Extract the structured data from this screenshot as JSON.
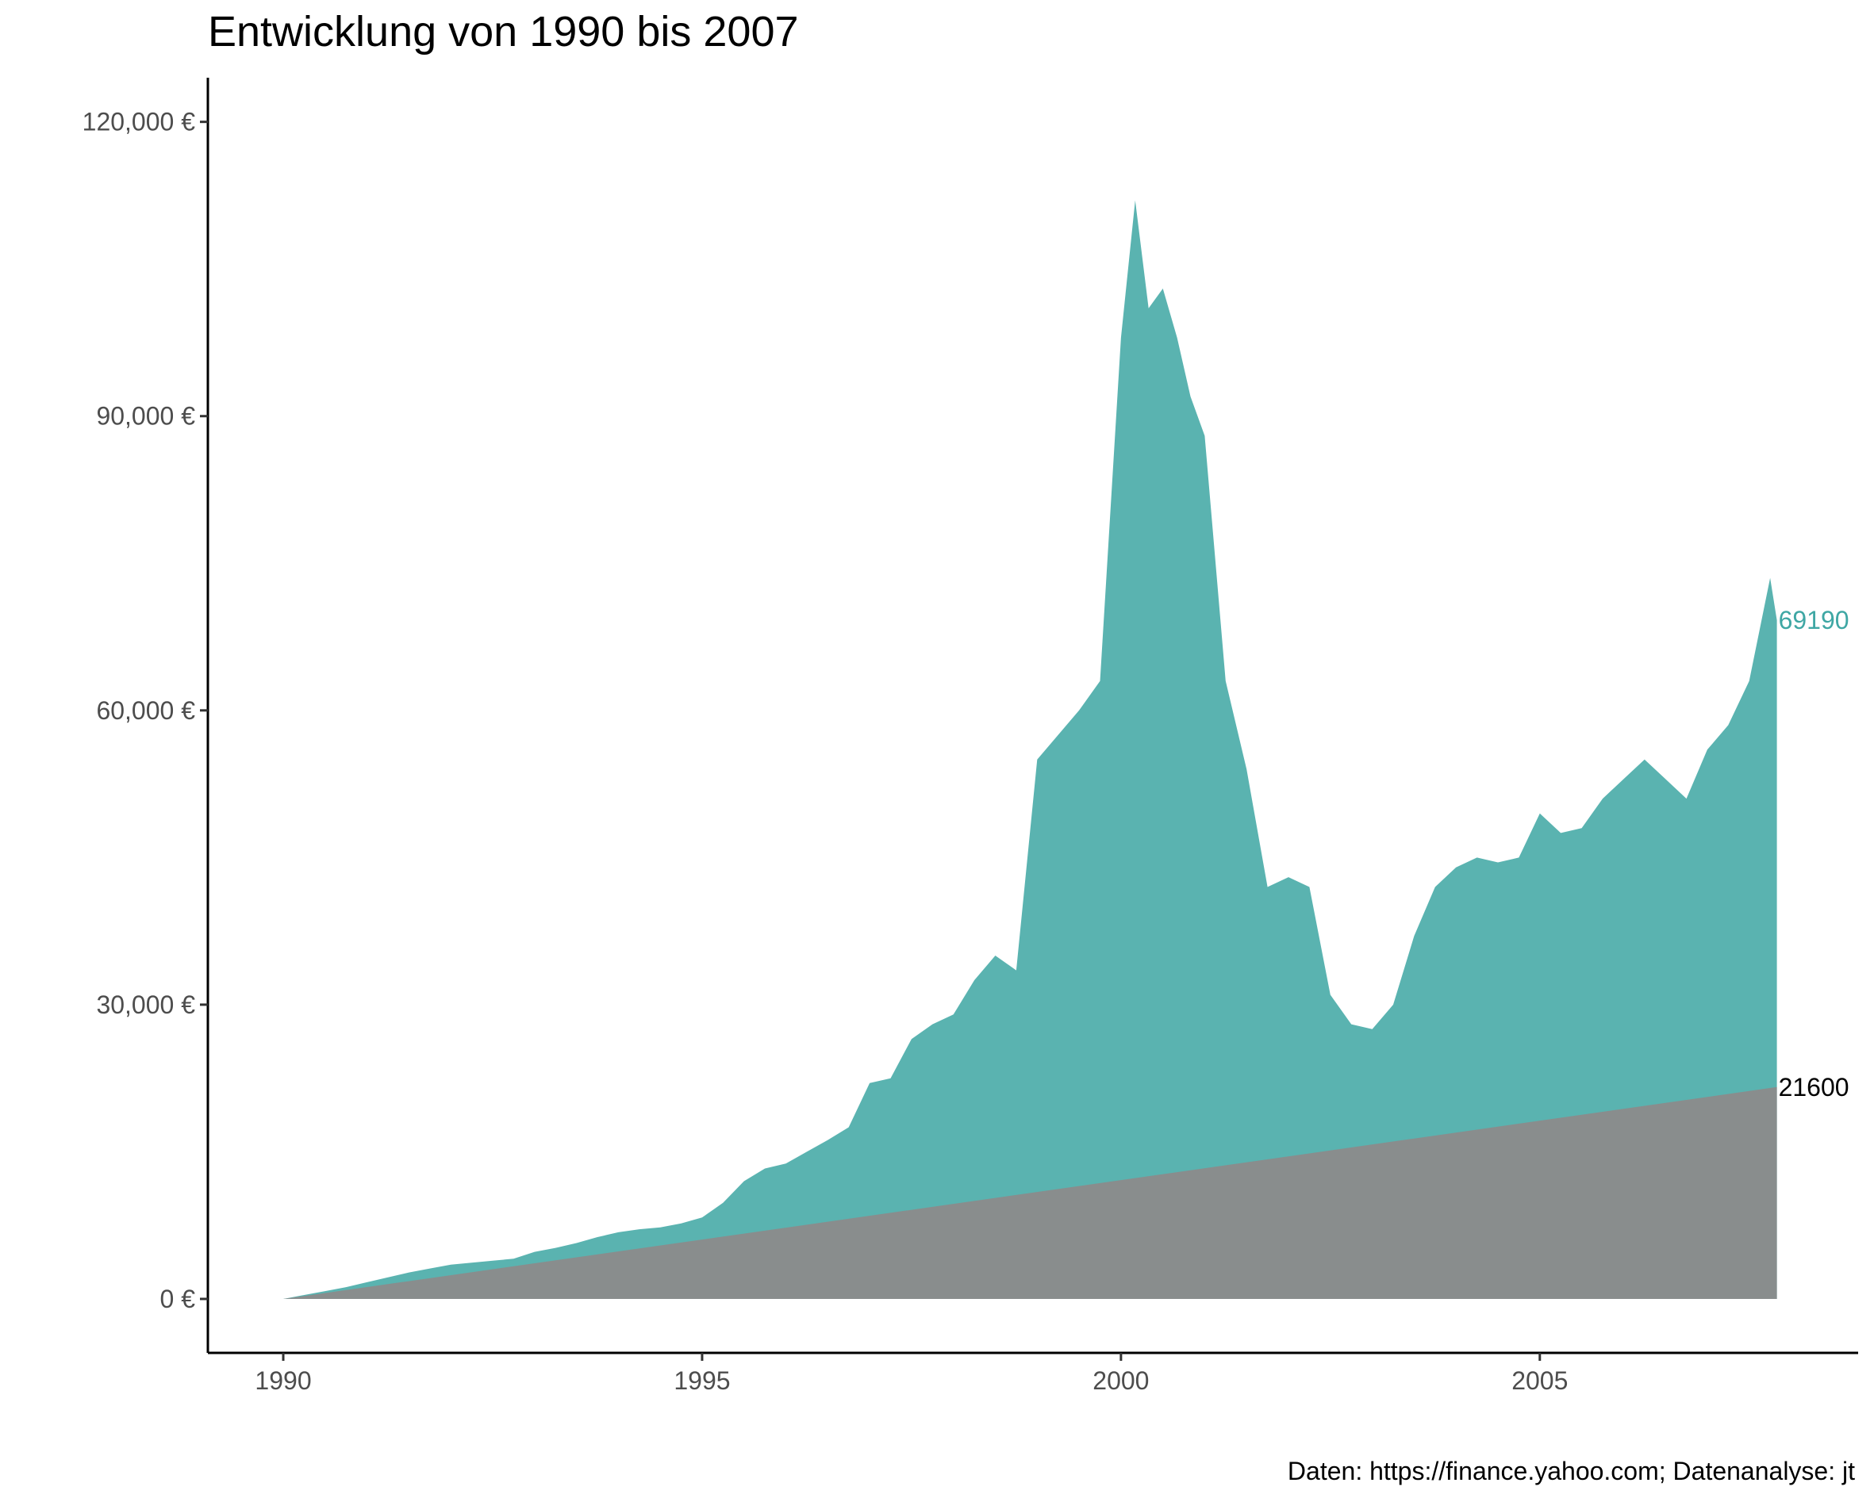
{
  "chart_data": {
    "type": "area",
    "title": "Entwicklung von 1990 bis 2007",
    "caption": "Daten: https://finance.yahoo.com; Datenanalyse: jt",
    "xlabel": "",
    "ylabel": "",
    "xlim": [
      1989.1,
      2008.8
    ],
    "ylim": [
      -5500,
      124500
    ],
    "x_ticks": [
      1990,
      1995,
      2000,
      2005
    ],
    "x_tick_labels": [
      "1990",
      "1995",
      "2000",
      "2005"
    ],
    "y_ticks": [
      0,
      30000,
      60000,
      90000,
      120000
    ],
    "y_tick_labels": [
      "0 €",
      "30,000 €",
      "60,000 €",
      "90,000 €",
      "120,000 €"
    ],
    "grid": false,
    "legend": "none",
    "series": [
      {
        "key": "depot",
        "color": "#5ab3b0",
        "end_label": "69190",
        "x": [
          1990.0,
          1990.25,
          1990.5,
          1990.75,
          1991.0,
          1991.25,
          1991.5,
          1991.75,
          1992.0,
          1992.25,
          1992.5,
          1992.75,
          1993.0,
          1993.25,
          1993.5,
          1993.75,
          1994.0,
          1994.25,
          1994.5,
          1994.75,
          1995.0,
          1995.25,
          1995.5,
          1995.75,
          1996.0,
          1996.25,
          1996.5,
          1996.75,
          1997.0,
          1997.25,
          1997.5,
          1997.75,
          1998.0,
          1998.25,
          1998.5,
          1998.75,
          1999.0,
          1999.25,
          1999.5,
          1999.75,
          2000.0,
          2000.17,
          2000.33,
          2000.5,
          2000.67,
          2000.83,
          2001.0,
          2001.25,
          2001.5,
          2001.75,
          2002.0,
          2002.25,
          2002.5,
          2002.75,
          2003.0,
          2003.25,
          2003.5,
          2003.75,
          2004.0,
          2004.25,
          2004.5,
          2004.75,
          2005.0,
          2005.25,
          2005.5,
          2005.75,
          2006.0,
          2006.25,
          2006.5,
          2006.75,
          2007.0,
          2007.25,
          2007.5,
          2007.75,
          2007.83
        ],
        "values": [
          0,
          400,
          800,
          1200,
          1700,
          2200,
          2700,
          3100,
          3500,
          3700,
          3900,
          4100,
          4800,
          5200,
          5700,
          6300,
          6800,
          7100,
          7300,
          7700,
          8300,
          9800,
          12000,
          13300,
          13800,
          15000,
          16200,
          17500,
          22000,
          22500,
          26500,
          28000,
          29000,
          32500,
          35000,
          33500,
          55000,
          57500,
          60000,
          63000,
          98000,
          112000,
          101000,
          103000,
          98000,
          92000,
          88000,
          63000,
          54000,
          42000,
          43000,
          42000,
          31000,
          28000,
          27500,
          30000,
          37000,
          42000,
          44000,
          45000,
          44500,
          45000,
          49500,
          47500,
          48000,
          51000,
          53000,
          55000,
          53000,
          51000,
          56000,
          58500,
          63000,
          73500,
          69190
        ]
      },
      {
        "key": "einzahlungen",
        "color": "#898d8d",
        "end_label": "21600",
        "x": [
          1990.0,
          2007.83
        ],
        "values": [
          0,
          21600
        ]
      }
    ]
  }
}
